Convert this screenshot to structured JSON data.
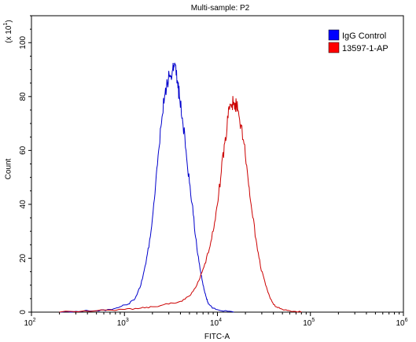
{
  "chart_data": {
    "type": "line",
    "title": "Multi-sample: P2",
    "xlabel": "FITC-A",
    "ylabel": "Count",
    "y_multiplier": "(x 10^1)",
    "x_scale": "log",
    "xlim": [
      100,
      1000000
    ],
    "ylim": [
      0,
      110
    ],
    "x_ticks": [
      {
        "value": 100,
        "base": "10",
        "exp": "2"
      },
      {
        "value": 1000,
        "base": "10",
        "exp": "3"
      },
      {
        "value": 10000,
        "base": "10",
        "exp": "4"
      },
      {
        "value": 100000,
        "base": "10",
        "exp": "5"
      },
      {
        "value": 1000000,
        "base": "10",
        "exp": "6"
      }
    ],
    "y_ticks": [
      "0",
      "20",
      "40",
      "60",
      "80",
      "100"
    ],
    "legend_position": "top-right",
    "series": [
      {
        "name": "IgG Control",
        "color": "#0000cc",
        "points": [
          [
            200,
            0
          ],
          [
            300,
            0.3
          ],
          [
            500,
            0.5
          ],
          [
            700,
            1
          ],
          [
            900,
            2
          ],
          [
            1100,
            3
          ],
          [
            1300,
            5
          ],
          [
            1500,
            10
          ],
          [
            1700,
            18
          ],
          [
            1900,
            28
          ],
          [
            2100,
            42
          ],
          [
            2300,
            58
          ],
          [
            2500,
            70
          ],
          [
            2700,
            80
          ],
          [
            2900,
            85
          ],
          [
            3100,
            88
          ],
          [
            3300,
            90
          ],
          [
            3500,
            92
          ],
          [
            3700,
            86
          ],
          [
            3900,
            80
          ],
          [
            4200,
            72
          ],
          [
            4600,
            60
          ],
          [
            5000,
            48
          ],
          [
            5500,
            36
          ],
          [
            6000,
            24
          ],
          [
            6500,
            16
          ],
          [
            7000,
            10
          ],
          [
            7500,
            6
          ],
          [
            8000,
            3
          ],
          [
            9000,
            1.5
          ],
          [
            11000,
            0.5
          ],
          [
            15000,
            0
          ]
        ]
      },
      {
        "name": "13597-1-AP",
        "color": "#cc0000",
        "points": [
          [
            200,
            0
          ],
          [
            500,
            0.5
          ],
          [
            1000,
            1
          ],
          [
            1500,
            1.5
          ],
          [
            2000,
            2
          ],
          [
            3000,
            3
          ],
          [
            4000,
            4
          ],
          [
            5000,
            6
          ],
          [
            6000,
            10
          ],
          [
            7000,
            16
          ],
          [
            8000,
            22
          ],
          [
            9000,
            30
          ],
          [
            10000,
            40
          ],
          [
            11000,
            52
          ],
          [
            12000,
            63
          ],
          [
            13000,
            72
          ],
          [
            14000,
            77
          ],
          [
            15000,
            78
          ],
          [
            16000,
            77
          ],
          [
            17000,
            73
          ],
          [
            19000,
            64
          ],
          [
            21000,
            52
          ],
          [
            23000,
            40
          ],
          [
            26000,
            27
          ],
          [
            29000,
            17
          ],
          [
            33000,
            10
          ],
          [
            37000,
            5
          ],
          [
            42000,
            2
          ],
          [
            50000,
            1
          ],
          [
            60000,
            0.5
          ],
          [
            80000,
            0
          ]
        ]
      }
    ]
  }
}
